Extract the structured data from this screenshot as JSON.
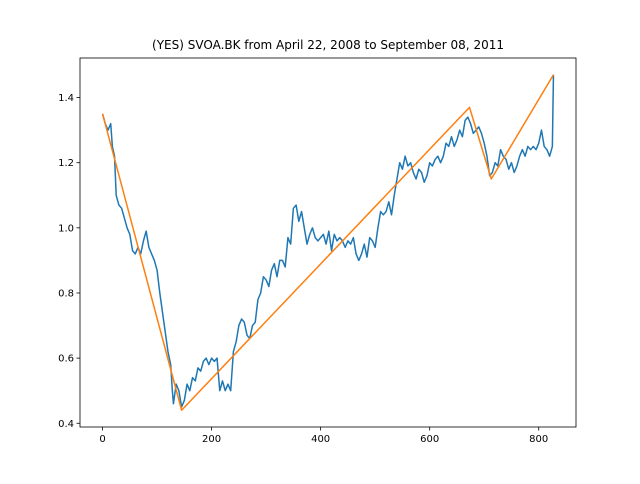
{
  "chart_data": {
    "type": "line",
    "title": "(YES) SVOA.BK from April 22, 2008 to September 08, 2011",
    "xlim": [
      -41.35,
      868.35
    ],
    "ylim": [
      0.3885,
      1.5215
    ],
    "xticks": [
      0,
      200,
      400,
      600,
      800
    ],
    "yticks": [
      0.4,
      0.6,
      0.8,
      {
        "value": 1,
        "label": "1.0"
      },
      1.2,
      1.4
    ],
    "series": [
      {
        "color": "#1f77b4",
        "x": [
          0,
          5,
          10,
          15,
          18,
          22,
          25,
          30,
          35,
          40,
          45,
          50,
          55,
          60,
          65,
          70,
          75,
          80,
          85,
          90,
          95,
          100,
          105,
          110,
          115,
          120,
          125,
          128,
          130,
          135,
          140,
          145,
          150,
          155,
          160,
          165,
          170,
          175,
          180,
          185,
          190,
          195,
          200,
          205,
          210,
          215,
          220,
          225,
          230,
          235,
          240,
          245,
          250,
          255,
          260,
          265,
          270,
          275,
          280,
          285,
          290,
          295,
          300,
          305,
          310,
          315,
          320,
          325,
          330,
          335,
          340,
          345,
          350,
          355,
          360,
          365,
          370,
          375,
          380,
          385,
          390,
          395,
          400,
          405,
          410,
          415,
          420,
          425,
          430,
          435,
          440,
          445,
          450,
          455,
          460,
          465,
          470,
          475,
          480,
          485,
          490,
          495,
          500,
          505,
          510,
          515,
          520,
          525,
          530,
          535,
          540,
          545,
          550,
          555,
          560,
          565,
          570,
          575,
          580,
          585,
          590,
          595,
          600,
          605,
          610,
          615,
          620,
          625,
          630,
          635,
          640,
          645,
          650,
          655,
          660,
          665,
          670,
          675,
          680,
          685,
          690,
          695,
          700,
          705,
          710,
          715,
          720,
          725,
          730,
          735,
          740,
          745,
          750,
          755,
          760,
          765,
          770,
          775,
          780,
          785,
          790,
          795,
          800,
          805,
          810,
          815,
          820,
          825,
          827
        ],
        "values": [
          1.35,
          1.32,
          1.3,
          1.32,
          1.25,
          1.22,
          1.1,
          1.07,
          1.06,
          1.03,
          1.0,
          0.98,
          0.93,
          0.92,
          0.94,
          0.92,
          0.96,
          0.99,
          0.94,
          0.92,
          0.9,
          0.87,
          0.8,
          0.74,
          0.68,
          0.62,
          0.58,
          0.5,
          0.46,
          0.52,
          0.5,
          0.45,
          0.47,
          0.52,
          0.5,
          0.54,
          0.53,
          0.57,
          0.56,
          0.59,
          0.6,
          0.58,
          0.6,
          0.59,
          0.6,
          0.5,
          0.53,
          0.5,
          0.52,
          0.5,
          0.62,
          0.65,
          0.7,
          0.72,
          0.71,
          0.67,
          0.66,
          0.7,
          0.71,
          0.78,
          0.8,
          0.85,
          0.84,
          0.82,
          0.87,
          0.89,
          0.85,
          0.9,
          0.9,
          0.88,
          0.97,
          0.95,
          1.06,
          1.07,
          1.02,
          1.05,
          1.0,
          0.95,
          0.98,
          1.0,
          0.97,
          0.96,
          0.97,
          0.98,
          0.95,
          0.99,
          0.93,
          0.98,
          0.96,
          0.97,
          0.96,
          0.94,
          0.96,
          0.95,
          0.97,
          0.92,
          0.9,
          0.92,
          0.95,
          0.91,
          0.97,
          0.96,
          0.94,
          1.0,
          1.05,
          1.04,
          1.05,
          1.08,
          1.04,
          1.1,
          1.15,
          1.2,
          1.18,
          1.22,
          1.19,
          1.2,
          1.17,
          1.15,
          1.18,
          1.17,
          1.14,
          1.16,
          1.2,
          1.19,
          1.21,
          1.22,
          1.2,
          1.22,
          1.26,
          1.25,
          1.28,
          1.25,
          1.27,
          1.3,
          1.28,
          1.33,
          1.34,
          1.32,
          1.29,
          1.3,
          1.31,
          1.29,
          1.26,
          1.22,
          1.16,
          1.17,
          1.2,
          1.19,
          1.24,
          1.22,
          1.21,
          1.18,
          1.2,
          1.17,
          1.19,
          1.22,
          1.24,
          1.22,
          1.25,
          1.24,
          1.25,
          1.24,
          1.26,
          1.3,
          1.25,
          1.24,
          1.22,
          1.25,
          1.47
        ]
      },
      {
        "color": "#ff7f0e",
        "x": [
          0,
          145,
          673,
          713,
          827
        ],
        "values": [
          1.35,
          0.44,
          1.37,
          1.15,
          1.47
        ]
      }
    ]
  }
}
